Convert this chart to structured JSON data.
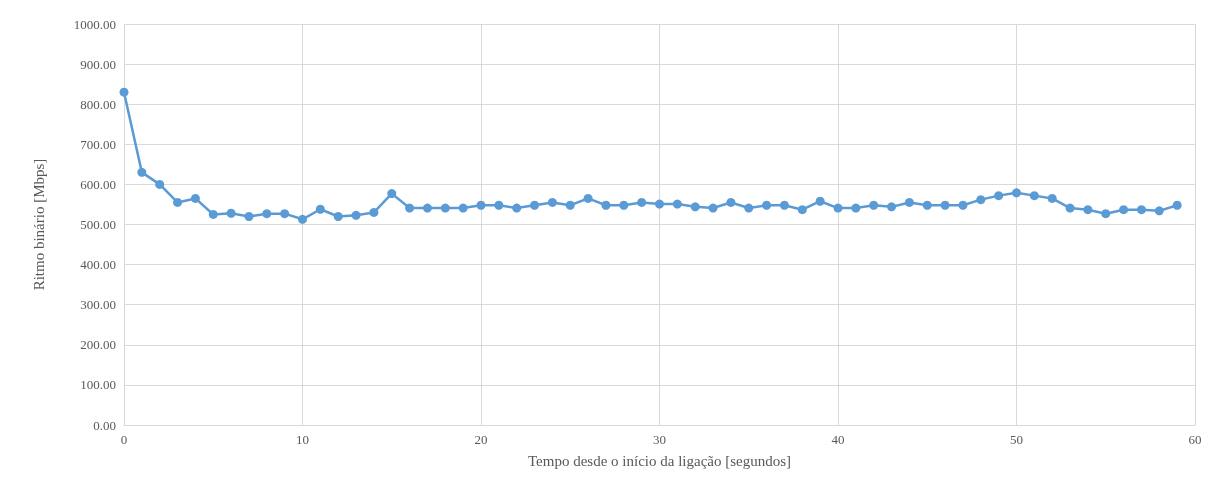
{
  "chart_data": {
    "type": "line",
    "xlabel": "Tempo desde o início da ligação [segundos]",
    "ylabel": "Ritmo binário [Mbps]",
    "x": [
      0,
      1,
      2,
      3,
      4,
      5,
      6,
      7,
      8,
      9,
      10,
      11,
      12,
      13,
      14,
      15,
      16,
      17,
      18,
      19,
      20,
      21,
      22,
      23,
      24,
      25,
      26,
      27,
      28,
      29,
      30,
      31,
      32,
      33,
      34,
      35,
      36,
      37,
      38,
      39,
      40,
      41,
      42,
      43,
      44,
      45,
      46,
      47,
      48,
      49,
      50,
      51,
      52,
      53,
      54,
      55,
      56,
      57,
      58,
      59
    ],
    "series": [
      {
        "color": "#5b9bd5",
        "values": [
          830,
          630,
          600,
          555,
          565,
          525,
          528,
          520,
          527,
          527,
          513,
          538,
          520,
          523,
          530,
          577,
          541,
          541,
          541,
          541,
          548,
          548,
          541,
          548,
          555,
          548,
          565,
          548,
          548,
          555,
          551,
          551,
          544,
          541,
          555,
          541,
          548,
          548,
          537,
          558,
          541,
          541,
          548,
          544,
          555,
          548,
          548,
          548,
          562,
          572,
          579,
          572,
          565,
          541,
          537,
          527,
          537,
          537,
          534,
          548
        ]
      }
    ],
    "xlim": [
      0,
      60
    ],
    "xticks": [
      0,
      10,
      20,
      30,
      40,
      50,
      60
    ],
    "ylim": [
      0,
      1000
    ],
    "yticks": [
      {
        "value": 0,
        "label": "0.00"
      },
      {
        "value": 100,
        "label": "100.00"
      },
      {
        "value": 200,
        "label": "200.00"
      },
      {
        "value": 300,
        "label": "300.00"
      },
      {
        "value": 400,
        "label": "400.00"
      },
      {
        "value": 500,
        "label": "500.00"
      },
      {
        "value": 600,
        "label": "600.00"
      },
      {
        "value": 700,
        "label": "700.00"
      },
      {
        "value": 800,
        "label": "800.00"
      },
      {
        "value": 900,
        "label": "900.00"
      },
      {
        "value": 1000,
        "label": "1000.00"
      }
    ],
    "grid": true,
    "marker": "circle",
    "line_style": "solid"
  }
}
